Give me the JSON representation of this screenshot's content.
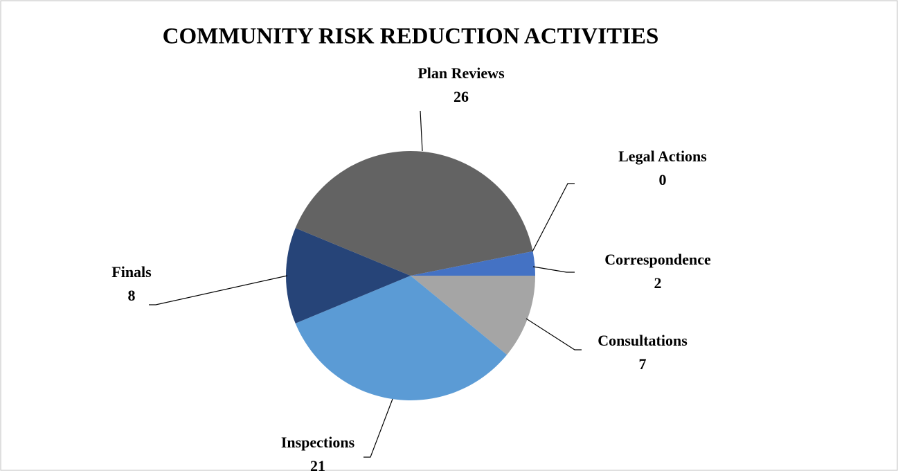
{
  "chart_data": {
    "type": "pie",
    "title": "COMMUNITY RISK REDUCTION ACTIVITIES",
    "categories": [
      "Consultations",
      "Inspections",
      "Finals",
      "Plan Reviews",
      "Legal Actions",
      "Correspondence"
    ],
    "values": [
      7,
      21,
      8,
      26,
      0,
      2
    ],
    "colors": [
      "#a5a5a5",
      "#5b9bd5",
      "#264478",
      "#636363",
      "#ffc000",
      "#4472c4"
    ]
  }
}
